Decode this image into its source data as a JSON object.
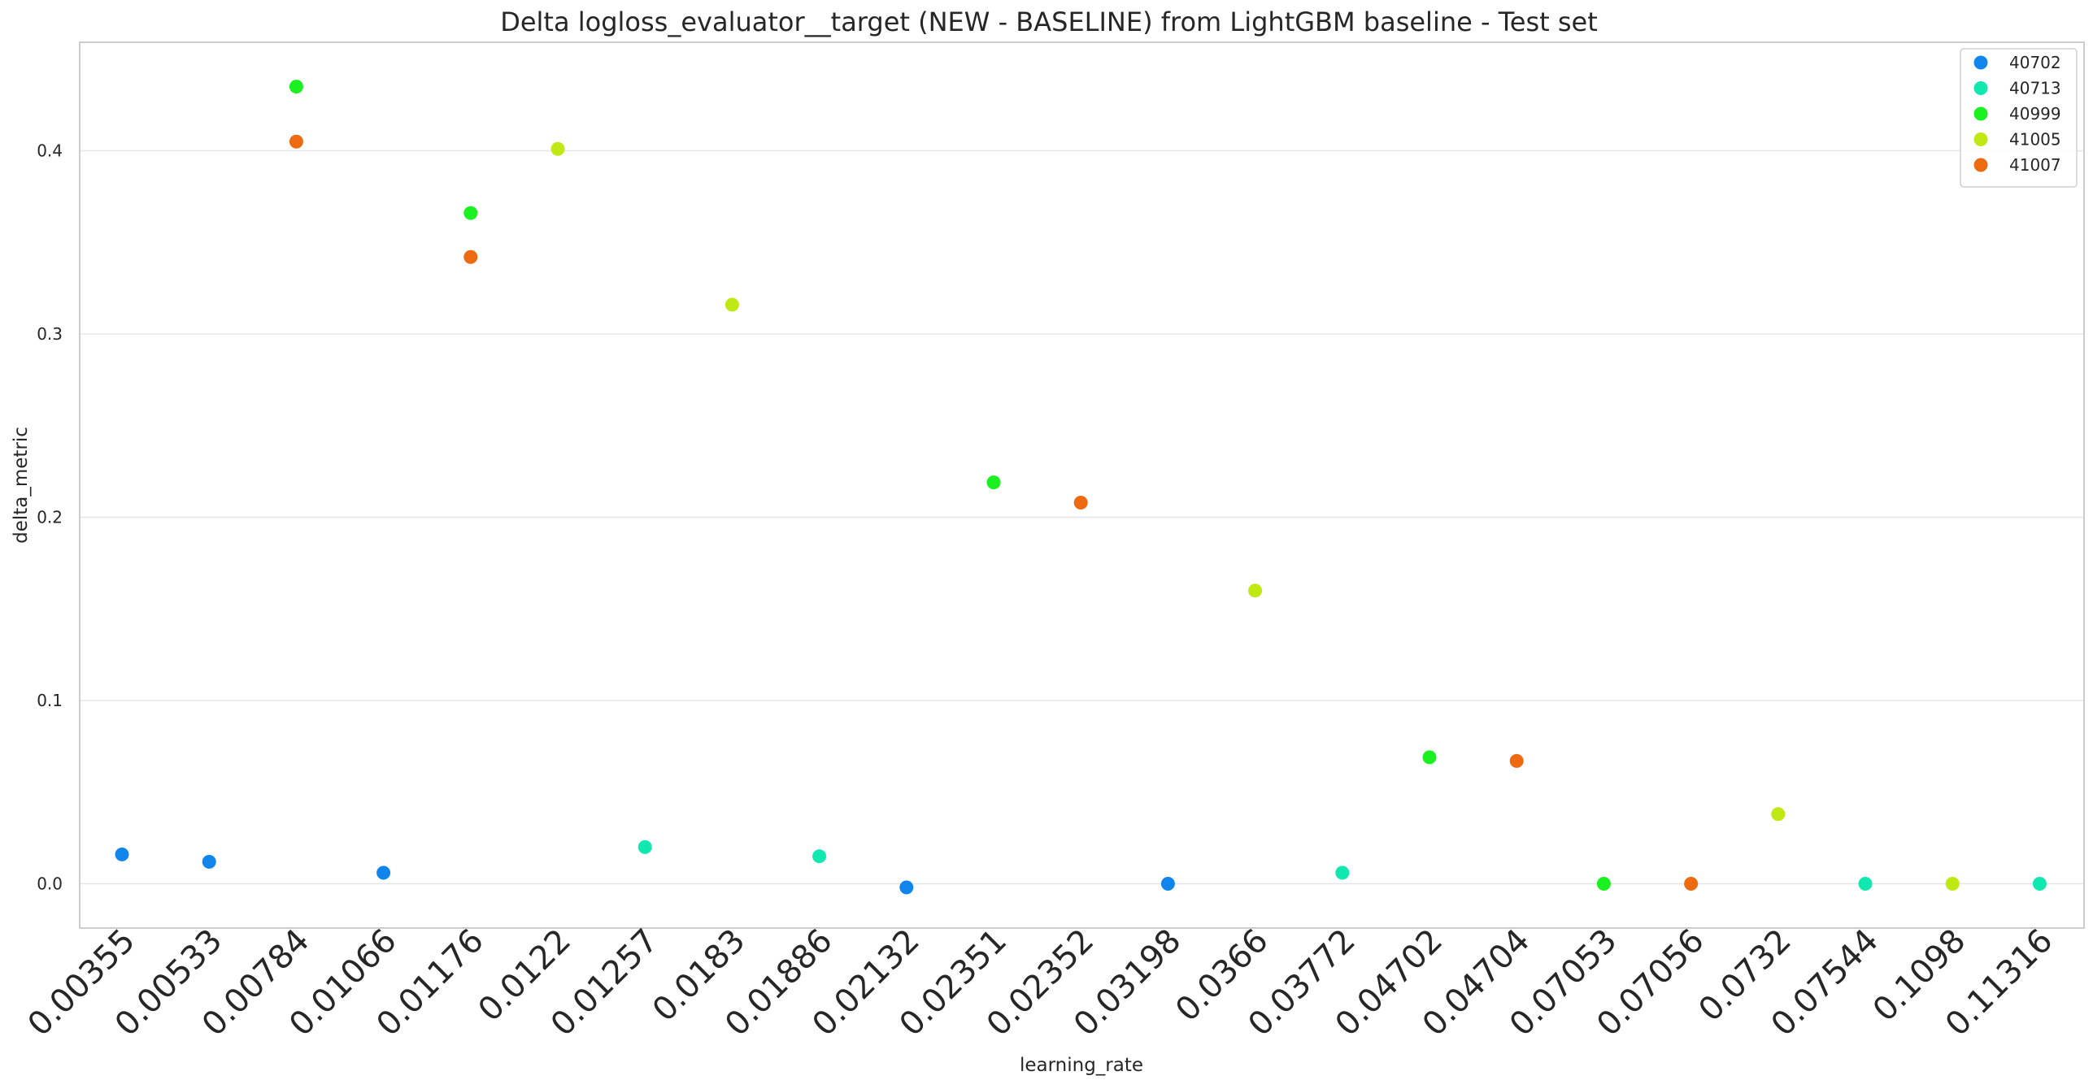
{
  "chart_data": {
    "type": "scatter",
    "title": "Delta logloss_evaluator__target (NEW - BASELINE) from LightGBM baseline - Test set",
    "xlabel": "learning_rate",
    "ylabel": "delta_metric",
    "x_scale": "categorical",
    "categories": [
      "0.00355",
      "0.00533",
      "0.00784",
      "0.01066",
      "0.01176",
      "0.0122",
      "0.01257",
      "0.0183",
      "0.01886",
      "0.02132",
      "0.02351",
      "0.02352",
      "0.03198",
      "0.0366",
      "0.03772",
      "0.04702",
      "0.04704",
      "0.07053",
      "0.07056",
      "0.0732",
      "0.07544",
      "0.1098",
      "0.11316"
    ],
    "ylim": [
      -0.025,
      0.46
    ],
    "yticks": [
      0.0,
      0.1,
      0.2,
      0.3,
      0.4
    ],
    "ytick_labels": [
      "0.0",
      "0.1",
      "0.2",
      "0.3",
      "0.4"
    ],
    "grid": "horizontal",
    "legend_position": "top-right",
    "series": [
      {
        "name": "40702",
        "color": "#1185ec",
        "points": [
          {
            "x": "0.00355",
            "y": 0.016
          },
          {
            "x": "0.00533",
            "y": 0.012
          },
          {
            "x": "0.01066",
            "y": 0.006
          },
          {
            "x": "0.02132",
            "y": -0.002
          },
          {
            "x": "0.03198",
            "y": 0.0
          }
        ]
      },
      {
        "name": "40713",
        "color": "#11e8b0",
        "points": [
          {
            "x": "0.01257",
            "y": 0.02
          },
          {
            "x": "0.01886",
            "y": 0.015
          },
          {
            "x": "0.03772",
            "y": 0.006
          },
          {
            "x": "0.07544",
            "y": 0.0
          },
          {
            "x": "0.11316",
            "y": 0.0
          }
        ]
      },
      {
        "name": "40999",
        "color": "#1bf020",
        "points": [
          {
            "x": "0.00784",
            "y": 0.435
          },
          {
            "x": "0.01176",
            "y": 0.366
          },
          {
            "x": "0.02351",
            "y": 0.219
          },
          {
            "x": "0.04702",
            "y": 0.069
          },
          {
            "x": "0.07053",
            "y": 0.0
          }
        ]
      },
      {
        "name": "41005",
        "color": "#c0e812",
        "points": [
          {
            "x": "0.0122",
            "y": 0.401
          },
          {
            "x": "0.0183",
            "y": 0.316
          },
          {
            "x": "0.0366",
            "y": 0.16
          },
          {
            "x": "0.0732",
            "y": 0.038
          },
          {
            "x": "0.1098",
            "y": 0.0
          }
        ]
      },
      {
        "name": "41007",
        "color": "#ee6a10",
        "points": [
          {
            "x": "0.00784",
            "y": 0.405
          },
          {
            "x": "0.01176",
            "y": 0.342
          },
          {
            "x": "0.02352",
            "y": 0.208
          },
          {
            "x": "0.04704",
            "y": 0.067
          },
          {
            "x": "0.07056",
            "y": 0.0
          }
        ]
      }
    ]
  }
}
